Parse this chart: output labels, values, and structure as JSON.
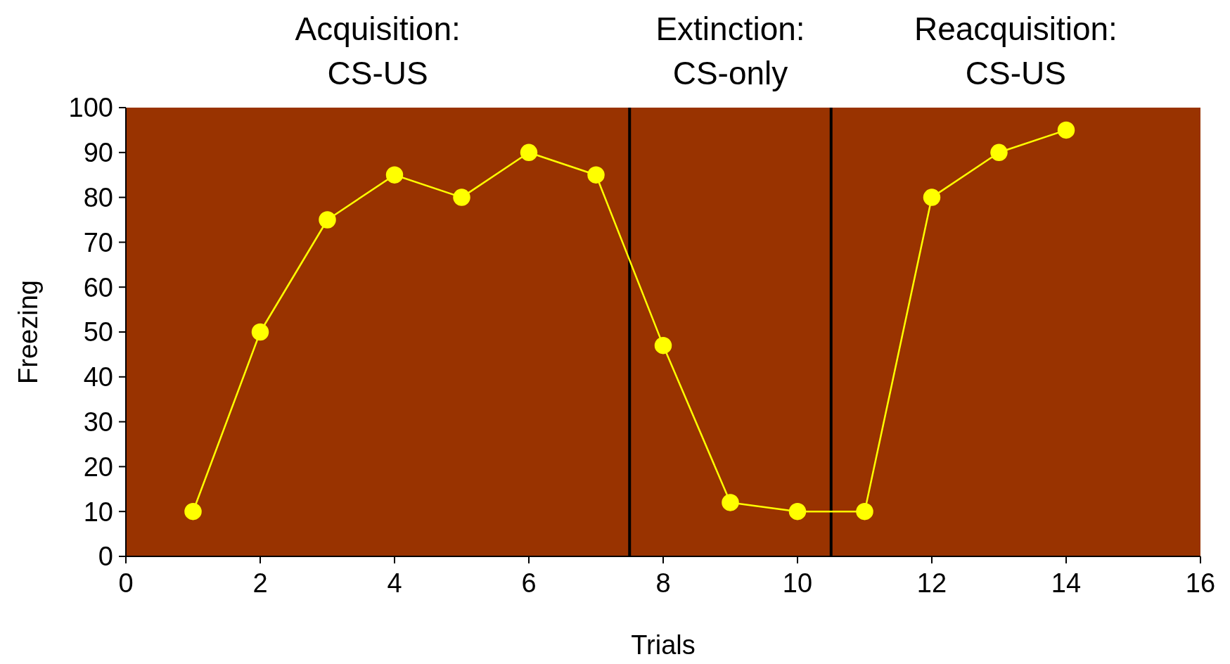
{
  "chart_data": {
    "type": "line",
    "xlabel": "Trials",
    "ylabel": "Freezing",
    "x": [
      1,
      2,
      3,
      4,
      5,
      6,
      7,
      8,
      9,
      10,
      11,
      12,
      13,
      14
    ],
    "series": [
      {
        "color": "#ffff00",
        "values": [
          10,
          50,
          75,
          85,
          80,
          90,
          85,
          47,
          12,
          10,
          10,
          80,
          90,
          95
        ]
      }
    ],
    "xlim": [
      0,
      16
    ],
    "xticks": [
      0,
      2,
      4,
      6,
      8,
      10,
      12,
      14,
      16
    ],
    "ylim": [
      0,
      100
    ],
    "yticks": [
      0,
      10,
      20,
      30,
      40,
      50,
      60,
      70,
      80,
      90,
      100
    ],
    "grid": false,
    "marker": "circle",
    "line_style": "solid",
    "ref_lines": [
      {
        "axis": "x",
        "value": 7.5,
        "color": "#000000"
      },
      {
        "axis": "x",
        "value": 10.5,
        "color": "#000000"
      }
    ],
    "annotations": [
      "Acquisition:\nCS-US",
      "Extinction:\nCS-only",
      "Reacquisition:\nCS-US"
    ]
  }
}
